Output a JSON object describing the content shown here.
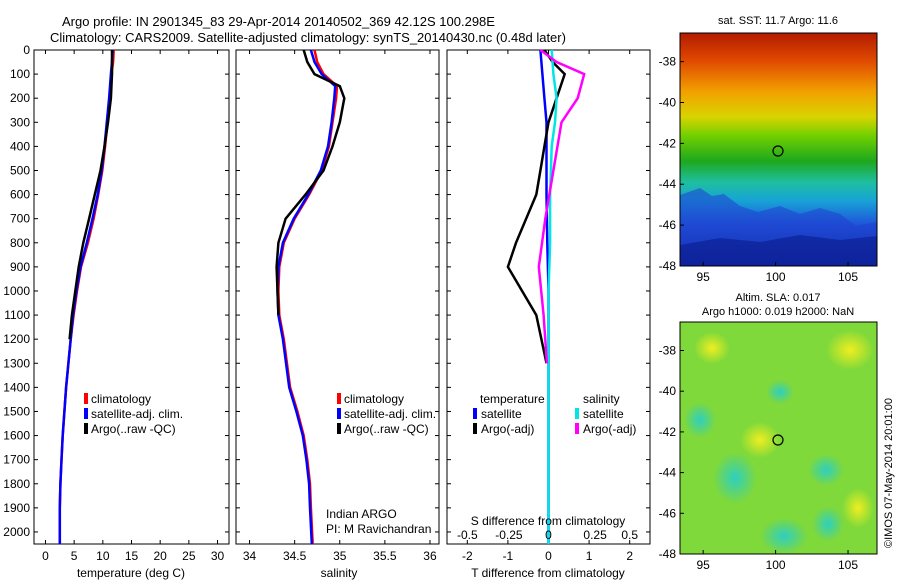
{
  "header": {
    "title_line1": "Argo profile: IN 2901345_83 29-Apr-2014 20140502_369 42.12S 100.298E",
    "title_line2": "Climatology: CARS2009. Satellite-adjusted climatology: synTS_20140430.nc (0.48d later)"
  },
  "depth_ticks": [
    0,
    100,
    200,
    300,
    400,
    500,
    600,
    700,
    800,
    900,
    1000,
    1100,
    1200,
    1300,
    1400,
    1500,
    1600,
    1700,
    1800,
    1900,
    2000
  ],
  "colors": {
    "climatology": "#ff0000",
    "satellite": "#0000ff",
    "argo": "#000000",
    "satellite_s": "#00e5e5",
    "argo_s": "#ff00ff"
  },
  "chart_data": [
    {
      "type": "line",
      "xlabel": "temperature (deg C)",
      "xlim": [
        -2,
        32
      ],
      "xticks": [
        0,
        5,
        10,
        15,
        20,
        25,
        30
      ],
      "ylim": [
        0,
        2050
      ],
      "y_reversed": true,
      "legend": [
        "climatology",
        "satellite-adj. clim.",
        "Argo(..raw -QC)"
      ],
      "series": [
        {
          "name": "climatology",
          "x": [
            11.9,
            11.8,
            11.5,
            11.2,
            10.8,
            10.4,
            9.9,
            9.2,
            8.4,
            7.4,
            6.2,
            5.5,
            4.9,
            4.4,
            4.0,
            3.6,
            3.3,
            3.0,
            2.8,
            2.6,
            2.5,
            2.5
          ],
          "y": [
            0,
            50,
            100,
            200,
            300,
            400,
            500,
            600,
            700,
            800,
            900,
            1000,
            1100,
            1200,
            1300,
            1400,
            1500,
            1600,
            1700,
            1800,
            1900,
            2050
          ]
        },
        {
          "name": "satellite-adj. clim.",
          "x": [
            11.7,
            11.6,
            11.4,
            11.1,
            10.7,
            10.3,
            9.8,
            9.1,
            8.2,
            7.2,
            6.1,
            5.4,
            4.8,
            4.4,
            4.0,
            3.6,
            3.3,
            3.0,
            2.8,
            2.6,
            2.5,
            2.5
          ],
          "y": [
            0,
            50,
            100,
            200,
            300,
            400,
            500,
            600,
            700,
            800,
            900,
            1000,
            1100,
            1200,
            1300,
            1400,
            1500,
            1600,
            1700,
            1800,
            1900,
            2050
          ]
        },
        {
          "name": "Argo(..raw -QC)",
          "x": [
            11.6,
            11.6,
            11.6,
            11.4,
            10.9,
            10.3,
            9.6,
            8.6,
            7.6,
            6.6,
            5.8,
            5.2,
            4.6,
            4.2
          ],
          "y": [
            0,
            50,
            100,
            200,
            300,
            400,
            500,
            600,
            700,
            800,
            900,
            1000,
            1100,
            1200
          ]
        }
      ]
    },
    {
      "type": "line",
      "xlabel": "salinity",
      "xlim": [
        33.85,
        36.1
      ],
      "xticks": [
        34,
        34.5,
        35,
        35.5,
        36
      ],
      "ylim": [
        0,
        2050
      ],
      "y_reversed": true,
      "legend": [
        "climatology",
        "satellite-adj. clim.",
        "Argo(..raw -QC)"
      ],
      "annotation_line1": "Indian ARGO",
      "annotation_line2": "PI: M Ravichandran",
      "series": [
        {
          "name": "climatology",
          "x": [
            34.72,
            34.75,
            34.82,
            34.97,
            34.96,
            34.92,
            34.88,
            34.8,
            34.66,
            34.5,
            34.38,
            34.33,
            34.32,
            34.33,
            34.38,
            34.45,
            34.53,
            34.6,
            34.64,
            34.67,
            34.68,
            34.7
          ],
          "y": [
            0,
            50,
            100,
            150,
            200,
            300,
            400,
            500,
            600,
            700,
            800,
            900,
            1000,
            1100,
            1200,
            1400,
            1500,
            1600,
            1700,
            1800,
            1900,
            2050
          ]
        },
        {
          "name": "satellite-adj. clim.",
          "x": [
            34.68,
            34.72,
            34.8,
            34.95,
            34.94,
            34.91,
            34.87,
            34.79,
            34.65,
            34.49,
            34.37,
            34.32,
            34.31,
            34.32,
            34.37,
            34.44,
            34.52,
            34.59,
            34.63,
            34.66,
            34.67,
            34.69
          ],
          "y": [
            0,
            50,
            100,
            150,
            200,
            300,
            400,
            500,
            600,
            700,
            800,
            900,
            1000,
            1100,
            1200,
            1400,
            1500,
            1600,
            1700,
            1800,
            1900,
            2050
          ]
        },
        {
          "name": "Argo(..raw -QC)",
          "x": [
            34.6,
            34.64,
            34.72,
            35.0,
            35.05,
            35.0,
            34.92,
            34.82,
            34.62,
            34.4,
            34.32,
            34.3,
            34.31,
            34.32
          ],
          "y": [
            0,
            50,
            100,
            150,
            200,
            300,
            400,
            500,
            600,
            700,
            800,
            900,
            1000,
            1100
          ]
        }
      ]
    },
    {
      "type": "line",
      "xlabel": "T difference from climatology",
      "xlabel2": "S difference from climatology",
      "xlim": [
        -2.5,
        2.5
      ],
      "xticks": [
        -2,
        -1,
        0,
        1,
        2
      ],
      "xticks_s": [
        "-0.5",
        "-0.25",
        "0",
        "0.25",
        "0.5"
      ],
      "ylim": [
        0,
        2050
      ],
      "y_reversed": true,
      "legend_title_t": "temperature",
      "legend_title_s": "salinity",
      "legend_t": [
        "satellite",
        "Argo(-adj)"
      ],
      "legend_s": [
        "satellite",
        "Argo(-adj)"
      ],
      "series": [
        {
          "name": "satellite",
          "x": [
            -0.2,
            -0.15,
            -0.1,
            -0.05,
            -0.05,
            -0.05,
            -0.05,
            -0.03,
            0,
            0,
            0,
            0
          ],
          "y": [
            0,
            100,
            200,
            300,
            400,
            500,
            600,
            800,
            1000,
            1400,
            1800,
            2050
          ]
        },
        {
          "name": "Argo(-adj)",
          "x": [
            -0.1,
            0.1,
            0.4,
            0.2,
            0,
            -0.1,
            -0.2,
            -0.3,
            -0.8,
            -1.0,
            -0.3,
            -0.05
          ],
          "y": [
            0,
            50,
            100,
            200,
            300,
            400,
            500,
            600,
            800,
            900,
            1100,
            1300
          ]
        },
        {
          "name": "satellite",
          "x": [
            0.02,
            0.03,
            0.05,
            0.04,
            0.02,
            0.01,
            0.01,
            0,
            0,
            0,
            0
          ],
          "y": [
            0,
            100,
            200,
            300,
            400,
            600,
            800,
            1000,
            1400,
            1800,
            2050
          ]
        },
        {
          "name": "Argo(-adj)",
          "x": [
            -0.05,
            0.05,
            0.22,
            0.18,
            0.08,
            0.03,
            -0.02,
            -0.06,
            -0.03,
            -0.01
          ],
          "y": [
            0,
            50,
            100,
            200,
            300,
            500,
            700,
            900,
            1100,
            1300
          ]
        }
      ]
    },
    {
      "type": "heatmap",
      "title": "sat. SST: 11.7 Argo: 11.6",
      "xticks": [
        95,
        100,
        105
      ],
      "yticks": [
        -38,
        -40,
        -42,
        -44,
        -46,
        -48
      ],
      "marker": {
        "lon": 100.298,
        "lat": -42.12
      }
    },
    {
      "type": "heatmap",
      "title_line1": "Altim. SLA: 0.017",
      "title_line2": "Argo h1000: 0.019 h2000: NaN",
      "xticks": [
        95,
        100,
        105
      ],
      "yticks": [
        -38,
        -40,
        -42,
        -44,
        -46,
        -48
      ],
      "marker": {
        "lon": 100.298,
        "lat": -42.12
      }
    }
  ],
  "side_stamp": "©IMOS 07-May-2014 20:01:00"
}
